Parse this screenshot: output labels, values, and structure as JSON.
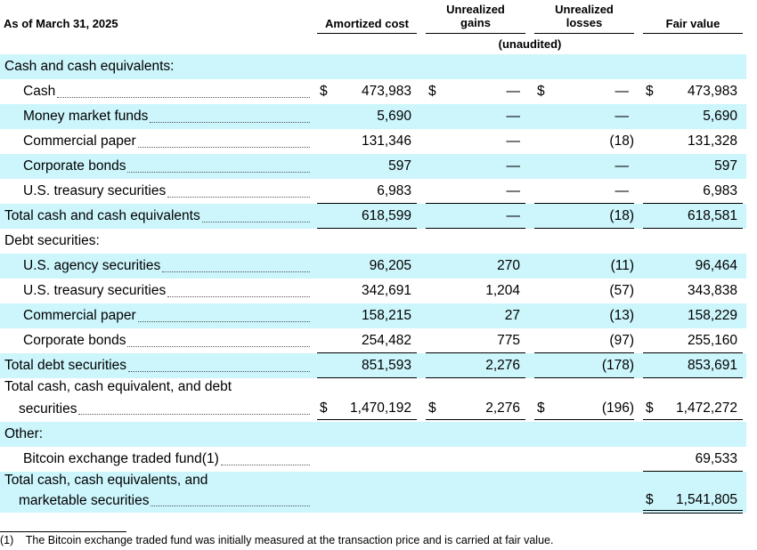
{
  "header": {
    "as_of": "As of March 31, 2025",
    "columns": [
      {
        "key": "amortized_cost",
        "line1": "Amortized cost",
        "line2": ""
      },
      {
        "key": "unrealized_gains",
        "line1": "Unrealized",
        "line2": "gains"
      },
      {
        "key": "unrealized_losses",
        "line1": "Unrealized",
        "line2": "losses"
      },
      {
        "key": "fair_value",
        "line1": "Fair value",
        "line2": ""
      }
    ],
    "unaudited": "(unaudited)"
  },
  "rows": [
    {
      "type": "section",
      "label": "Cash and cash equivalents:",
      "shaded": true
    },
    {
      "type": "item",
      "label": "Cash",
      "indent": 1,
      "dollar": true,
      "amortized_cost": "473,983",
      "unrealized_gains": "—",
      "unrealized_losses": "—",
      "fair_value": "473,983",
      "shaded": false
    },
    {
      "type": "item",
      "label": "Money market funds",
      "indent": 1,
      "amortized_cost": "5,690",
      "unrealized_gains": "—",
      "unrealized_losses": "—",
      "fair_value": "5,690",
      "shaded": true
    },
    {
      "type": "item",
      "label": "Commercial paper",
      "indent": 1,
      "amortized_cost": "131,346",
      "unrealized_gains": "—",
      "unrealized_losses": "(18)",
      "fair_value": "131,328",
      "shaded": false
    },
    {
      "type": "item",
      "label": "Corporate bonds",
      "indent": 1,
      "amortized_cost": "597",
      "unrealized_gains": "—",
      "unrealized_losses": "—",
      "fair_value": "597",
      "shaded": true
    },
    {
      "type": "item",
      "label": "U.S. treasury securities",
      "indent": 1,
      "amortized_cost": "6,983",
      "unrealized_gains": "—",
      "unrealized_losses": "—",
      "fair_value": "6,983",
      "shaded": false,
      "rule_below": true
    },
    {
      "type": "total",
      "label": "Total cash and cash equivalents",
      "indent": 0,
      "amortized_cost": "618,599",
      "unrealized_gains": "—",
      "unrealized_losses": "(18)",
      "fair_value": "618,581",
      "shaded": true,
      "rule_below": true
    },
    {
      "type": "section",
      "label": "Debt securities:",
      "shaded": false
    },
    {
      "type": "item",
      "label": "U.S. agency securities",
      "indent": 1,
      "amortized_cost": "96,205",
      "unrealized_gains": "270",
      "unrealized_losses": "(11)",
      "fair_value": "96,464",
      "shaded": true
    },
    {
      "type": "item",
      "label": "U.S. treasury securities",
      "indent": 1,
      "amortized_cost": "342,691",
      "unrealized_gains": "1,204",
      "unrealized_losses": "(57)",
      "fair_value": "343,838",
      "shaded": false
    },
    {
      "type": "item",
      "label": "Commercial paper",
      "indent": 1,
      "amortized_cost": "158,215",
      "unrealized_gains": "27",
      "unrealized_losses": "(13)",
      "fair_value": "158,229",
      "shaded": true
    },
    {
      "type": "item",
      "label": "Corporate bonds",
      "indent": 1,
      "amortized_cost": "254,482",
      "unrealized_gains": "775",
      "unrealized_losses": "(97)",
      "fair_value": "255,160",
      "shaded": false,
      "rule_below": true
    },
    {
      "type": "total",
      "label": "Total debt securities",
      "indent": 0,
      "amortized_cost": "851,593",
      "unrealized_gains": "2,276",
      "unrealized_losses": "(178)",
      "fair_value": "853,691",
      "shaded": true,
      "rule_below": true
    },
    {
      "type": "total2",
      "label": "Total cash, cash equivalent, and debt",
      "label2": "securities",
      "indent": 0,
      "dollar": true,
      "amortized_cost": "1,470,192",
      "unrealized_gains": "2,276",
      "unrealized_losses": "(196)",
      "fair_value": "1,472,272",
      "shaded": false,
      "double_below": true
    },
    {
      "type": "section",
      "label": "Other:",
      "shaded": true
    },
    {
      "type": "item",
      "label": "Bitcoin exchange traded fund(1)",
      "indent": 1,
      "amortized_cost": "",
      "unrealized_gains": "",
      "unrealized_losses": "",
      "fair_value": "69,533",
      "shaded": false,
      "rule_below_fv": true
    },
    {
      "type": "grand",
      "label": "Total cash, cash equivalents, and",
      "label2": "marketable securities",
      "indent": 0,
      "dollar_fv": true,
      "amortized_cost": "",
      "unrealized_gains": "",
      "unrealized_losses": "",
      "fair_value": "1,541,805",
      "shaded": true,
      "double_below_fv": true
    }
  ],
  "footnote": {
    "marker": "(1)",
    "text": "The Bitcoin exchange traded fund was initially measured at the transaction price and is carried at fair value."
  }
}
